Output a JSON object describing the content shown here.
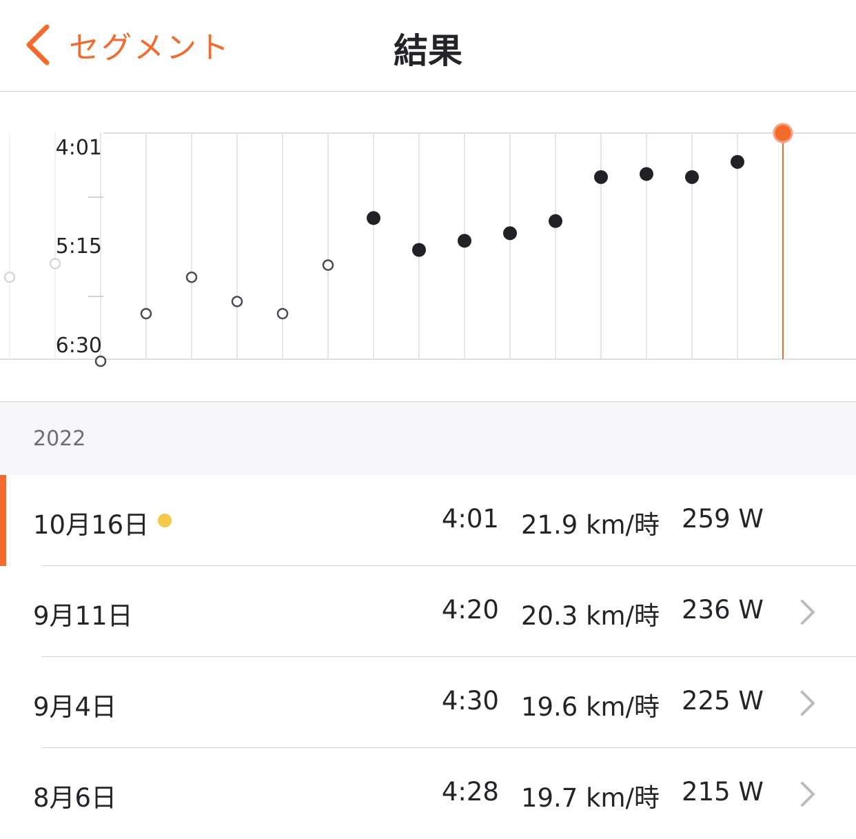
{
  "header": {
    "back_label": "セグメント",
    "title": "結果"
  },
  "colors": {
    "accent": "#f26a2c",
    "point": "#222226",
    "badge": "#f5c84a"
  },
  "chart_data": {
    "type": "scatter",
    "y_axis": {
      "ticks": [
        "4:01",
        "5:15",
        "6:30"
      ],
      "inverted": true,
      "range": [
        "4:01",
        "6:30"
      ]
    },
    "grid": "vertical",
    "points": [
      {
        "y": "5:36",
        "style": "faded-hollow"
      },
      {
        "y": "5:27",
        "style": "faded-hollow"
      },
      {
        "y": "6:32",
        "style": "hollow"
      },
      {
        "y": "6:00",
        "style": "hollow"
      },
      {
        "y": "5:36",
        "style": "hollow"
      },
      {
        "y": "5:52",
        "style": "hollow"
      },
      {
        "y": "6:00",
        "style": "hollow"
      },
      {
        "y": "5:28",
        "style": "hollow"
      },
      {
        "y": "4:57",
        "style": "filled"
      },
      {
        "y": "5:18",
        "style": "filled"
      },
      {
        "y": "5:12",
        "style": "filled"
      },
      {
        "y": "5:07",
        "style": "filled"
      },
      {
        "y": "4:59",
        "style": "filled"
      },
      {
        "y": "4:30",
        "style": "filled"
      },
      {
        "y": "4:28",
        "style": "filled"
      },
      {
        "y": "4:30",
        "style": "filled"
      },
      {
        "y": "4:20",
        "style": "filled"
      },
      {
        "y": "4:01",
        "style": "selected"
      }
    ]
  },
  "section": {
    "year": "2022"
  },
  "rows": [
    {
      "date": "10月16日",
      "time": "4:01",
      "speed": "21.9 km/時",
      "power": "259 W",
      "selected": true
    },
    {
      "date": "9月11日",
      "time": "4:20",
      "speed": "20.3 km/時",
      "power": "236 W",
      "selected": false
    },
    {
      "date": "9月4日",
      "time": "4:30",
      "speed": "19.6 km/時",
      "power": "225 W",
      "selected": false
    },
    {
      "date": "8月6日",
      "time": "4:28",
      "speed": "19.7 km/時",
      "power": "215 W",
      "selected": false
    }
  ]
}
